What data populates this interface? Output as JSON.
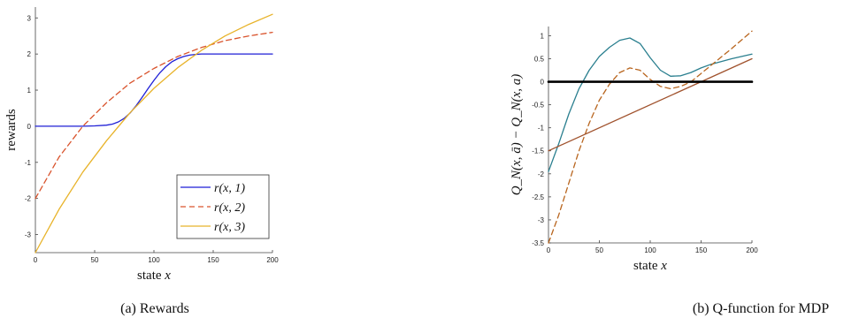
{
  "chart_data": [
    {
      "type": "line",
      "caption": "(a) Rewards",
      "xlabel": "state x",
      "ylabel": "rewards",
      "xlim": [
        0,
        200
      ],
      "ylim": [
        -3.5,
        3.3
      ],
      "xticks": [
        0,
        50,
        100,
        150,
        200
      ],
      "yticks": [
        -3,
        -2,
        -1,
        0,
        1,
        2,
        3
      ],
      "legend_placement": "bottom-right",
      "series": [
        {
          "name": "r(x, 1)",
          "color": "#1f1fd6",
          "style": "solid",
          "x": [
            0,
            20,
            40,
            50,
            60,
            65,
            70,
            75,
            80,
            85,
            90,
            95,
            100,
            105,
            110,
            115,
            120,
            125,
            130,
            135,
            140,
            150,
            160,
            180,
            200
          ],
          "y": [
            0,
            0,
            0,
            0.01,
            0.03,
            0.06,
            0.12,
            0.22,
            0.37,
            0.57,
            0.8,
            1.04,
            1.27,
            1.48,
            1.65,
            1.78,
            1.87,
            1.93,
            1.97,
            1.99,
            2.0,
            2.0,
            2.0,
            2.0,
            2.0
          ]
        },
        {
          "name": "r(x, 2)",
          "color": "#d9532c",
          "style": "dashed",
          "x": [
            0,
            20,
            40,
            60,
            80,
            100,
            120,
            140,
            160,
            180,
            200
          ],
          "y": [
            -2.0,
            -0.85,
            0.0,
            0.65,
            1.2,
            1.6,
            1.93,
            2.18,
            2.37,
            2.5,
            2.6
          ]
        },
        {
          "name": "r(x, 3)",
          "color": "#e8b32a",
          "style": "solid",
          "x": [
            0,
            20,
            40,
            60,
            80,
            100,
            120,
            140,
            160,
            180,
            200
          ],
          "y": [
            -3.5,
            -2.3,
            -1.27,
            -0.4,
            0.38,
            1.05,
            1.62,
            2.1,
            2.5,
            2.82,
            3.1
          ]
        }
      ]
    },
    {
      "type": "line",
      "caption": "(b) Q-function for MDP",
      "xlabel": "state x",
      "ylabel": "Q_N(x, ā) − Q_N(x, a)",
      "xlim": [
        0,
        200
      ],
      "ylim": [
        -3.5,
        1.2
      ],
      "xticks": [
        0,
        50,
        100,
        150,
        200
      ],
      "yticks": [
        -3.5,
        -3,
        -2.5,
        -2,
        -1.5,
        -1,
        -0.5,
        0,
        0.5,
        1
      ],
      "series": [
        {
          "color": "#2a7f8f",
          "style": "solid",
          "x": [
            0,
            10,
            20,
            30,
            40,
            50,
            60,
            70,
            80,
            90,
            100,
            110,
            120,
            130,
            140,
            150,
            160,
            180,
            200
          ],
          "y": [
            -1.95,
            -1.35,
            -0.7,
            -0.15,
            0.25,
            0.55,
            0.75,
            0.9,
            0.95,
            0.83,
            0.52,
            0.25,
            0.12,
            0.13,
            0.2,
            0.3,
            0.38,
            0.5,
            0.6
          ]
        },
        {
          "color": "#b8651e",
          "style": "dashed",
          "x": [
            0,
            10,
            20,
            30,
            40,
            50,
            60,
            70,
            80,
            90,
            100,
            110,
            120,
            130,
            140,
            150,
            160,
            180,
            200
          ],
          "y": [
            -3.5,
            -2.9,
            -2.2,
            -1.5,
            -0.9,
            -0.4,
            -0.05,
            0.2,
            0.3,
            0.25,
            0.05,
            -0.1,
            -0.15,
            -0.1,
            0.0,
            0.18,
            0.36,
            0.72,
            1.1
          ]
        },
        {
          "color": "#a0522d",
          "style": "solid",
          "x": [
            0,
            200
          ],
          "y": [
            -1.5,
            0.5
          ]
        },
        {
          "color": "#000000",
          "style": "solid-thick",
          "x": [
            0,
            200
          ],
          "y": [
            0,
            0
          ]
        }
      ]
    }
  ]
}
